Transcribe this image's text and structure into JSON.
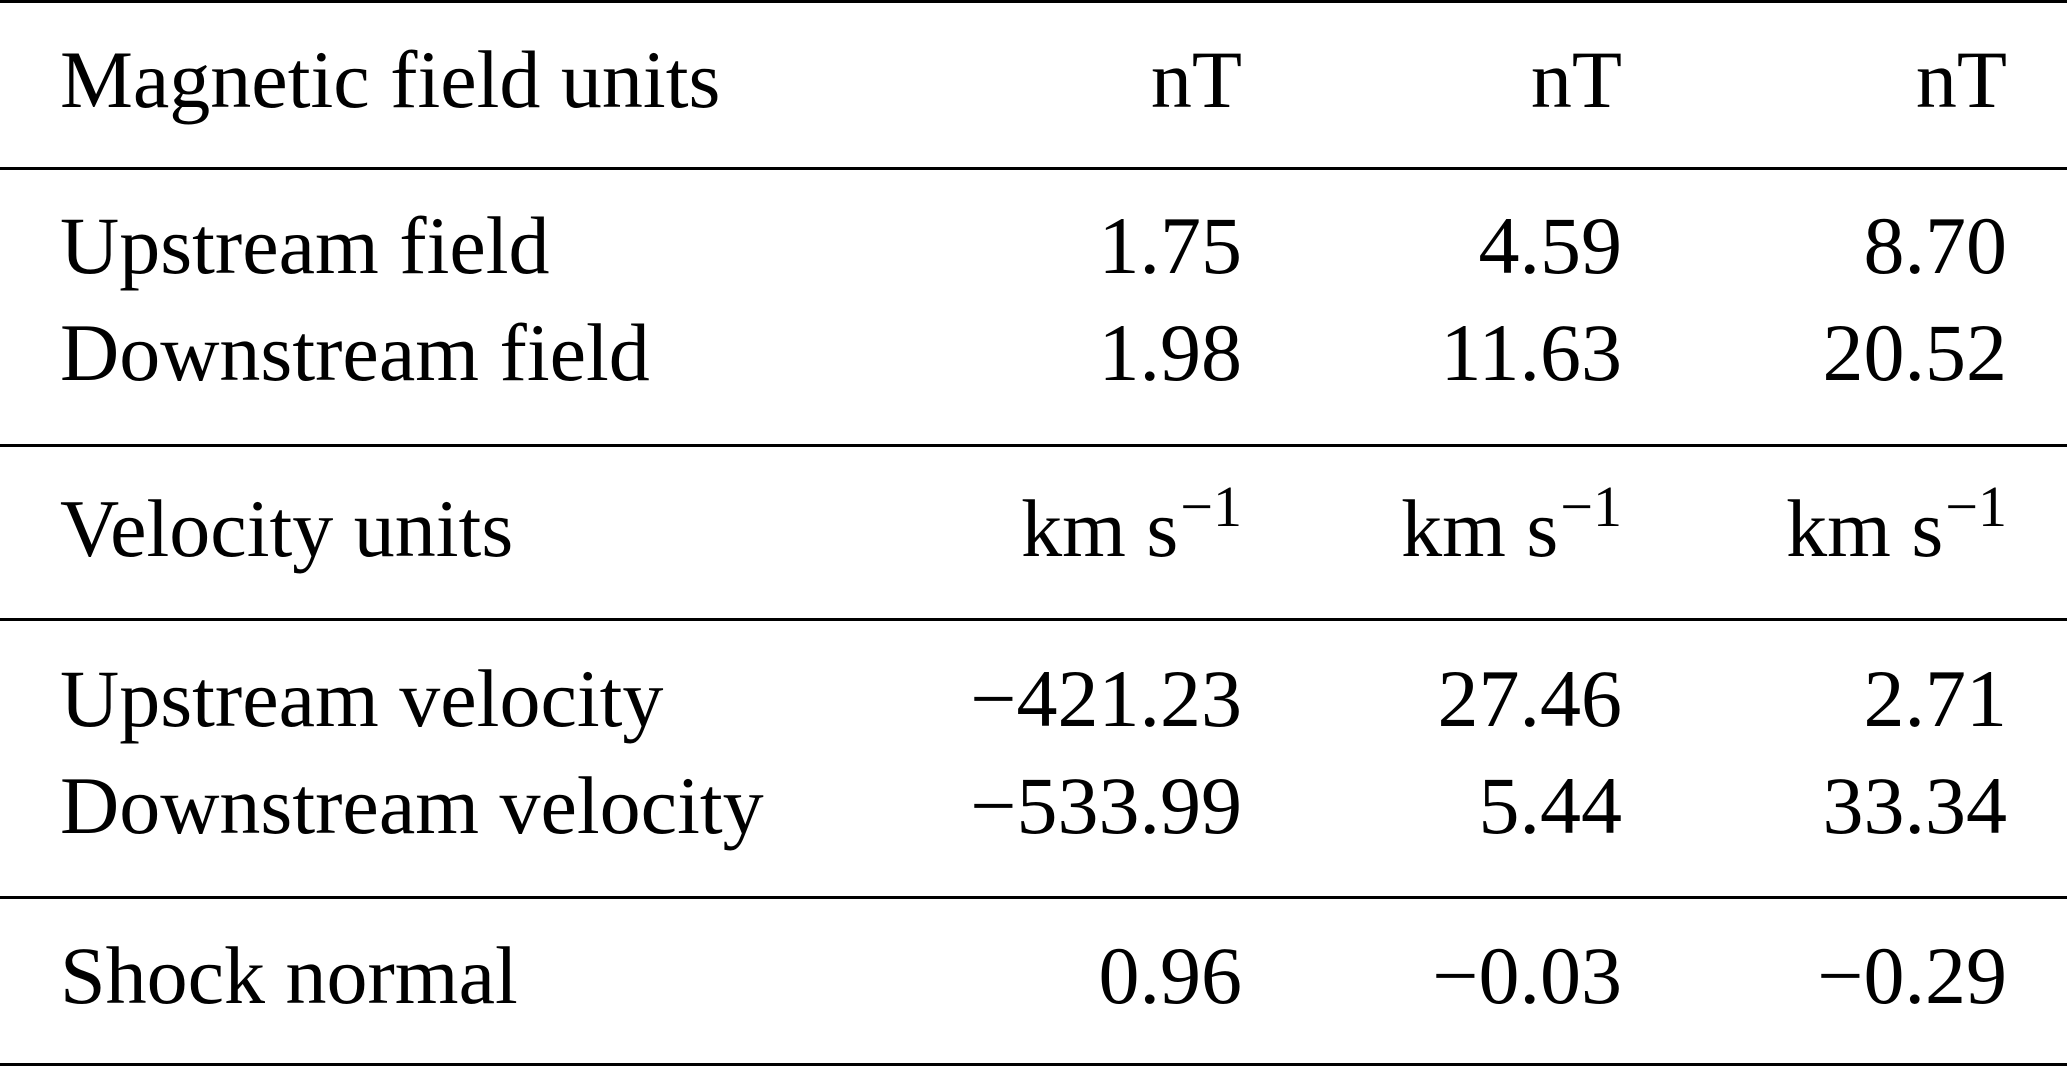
{
  "table": {
    "magnetic_header": {
      "label": "Magnetic field units",
      "units": [
        "nT",
        "nT",
        "nT"
      ]
    },
    "magnetic_rows": [
      {
        "label": "Upstream field",
        "values": [
          "1.75",
          "4.59",
          "8.70"
        ]
      },
      {
        "label": "Downstream field",
        "values": [
          "1.98",
          "11.63",
          "20.52"
        ]
      }
    ],
    "velocity_header": {
      "label": "Velocity units",
      "unit_base": "km s",
      "unit_exp": "−1"
    },
    "velocity_rows": [
      {
        "label": "Upstream velocity",
        "values": [
          "−421.23",
          "27.46",
          "2.71"
        ]
      },
      {
        "label": "Downstream velocity",
        "values": [
          "−533.99",
          "5.44",
          "33.34"
        ]
      }
    ],
    "shock_normal": {
      "label": "Shock normal",
      "values": [
        "0.96",
        "−0.03",
        "−0.29"
      ]
    }
  }
}
